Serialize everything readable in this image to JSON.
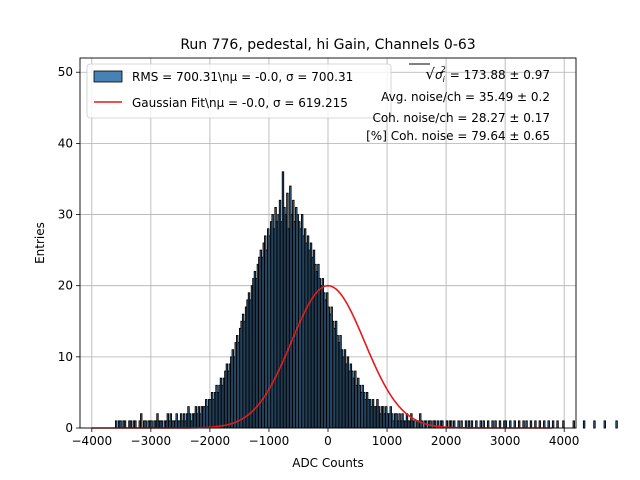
{
  "chart_data": {
    "type": "bar",
    "title": "Run 776, pedestal, hi Gain, Channels 0-63",
    "xlabel": "ADC Counts",
    "ylabel": "Entries",
    "xlim": [
      -4200,
      4200
    ],
    "ylim": [
      0,
      52
    ],
    "x_ticks": [
      -4000,
      -3000,
      -2000,
      -1000,
      0,
      1000,
      2000,
      3000,
      4000
    ],
    "y_ticks": [
      0,
      10,
      20,
      30,
      40,
      50
    ],
    "grid": true,
    "histogram": {
      "name": "RMS",
      "legend_label": "RMS = 700.31\\nμ = -0.0, σ = 700.31",
      "x_start": -3600,
      "bin_width": 25,
      "color": "#4682b4",
      "outline": "#000000",
      "values": [
        1,
        0,
        1,
        1,
        0,
        1,
        1,
        0,
        0,
        1,
        1,
        0,
        1,
        1,
        0,
        0,
        1,
        2,
        0,
        1,
        1,
        0,
        1,
        1,
        1,
        0,
        1,
        1,
        2,
        1,
        1,
        1,
        0,
        1,
        1,
        2,
        1,
        2,
        1,
        1,
        1,
        2,
        1,
        1,
        2,
        1,
        2,
        1,
        2,
        3,
        2,
        1,
        2,
        2,
        3,
        2,
        3,
        2,
        3,
        3,
        3,
        4,
        3,
        4,
        4,
        5,
        4,
        5,
        6,
        5,
        6,
        7,
        6,
        7,
        8,
        9,
        8,
        9,
        10,
        11,
        10,
        12,
        13,
        12,
        14,
        15,
        16,
        15,
        17,
        18,
        19,
        18,
        20,
        21,
        22,
        21,
        23,
        24,
        25,
        24,
        26,
        27,
        25,
        28,
        27,
        29,
        30,
        28,
        31,
        29,
        30,
        32,
        29,
        36,
        31,
        30,
        33,
        28,
        34,
        30,
        32,
        29,
        31,
        30,
        29,
        28,
        30,
        27,
        28,
        26,
        27,
        25,
        26,
        24,
        25,
        23,
        22,
        23,
        21,
        20,
        21,
        19,
        18,
        19,
        17,
        16,
        17,
        15,
        14,
        15,
        13,
        12,
        13,
        11,
        10,
        11,
        9,
        10,
        8,
        9,
        8,
        7,
        8,
        6,
        7,
        6,
        5,
        6,
        5,
        4,
        5,
        4,
        4,
        3,
        4,
        3,
        3,
        4,
        3,
        2,
        3,
        3,
        2,
        3,
        2,
        2,
        3,
        2,
        1,
        2,
        2,
        1,
        2,
        1,
        2,
        1,
        1,
        2,
        1,
        1,
        2,
        1,
        1,
        0,
        1,
        1,
        2,
        1,
        0,
        1,
        1,
        0,
        1,
        1,
        0,
        1,
        1,
        0,
        1,
        0,
        1,
        1,
        0,
        0,
        1,
        0,
        1,
        1,
        0,
        1,
        0,
        0,
        1,
        0,
        1,
        0,
        0,
        1,
        0,
        1,
        0,
        1,
        0,
        0,
        1,
        0,
        0,
        1,
        0,
        1,
        0,
        0,
        1,
        0,
        0,
        1,
        0,
        1,
        0,
        0,
        1,
        0,
        0,
        1,
        1,
        0,
        0,
        1,
        0,
        0,
        1,
        0,
        0,
        1,
        0,
        0,
        1,
        0,
        1,
        0,
        0,
        1,
        0,
        0,
        1,
        0,
        0,
        1,
        0,
        0,
        1,
        0,
        0,
        1,
        0,
        0,
        1,
        0,
        0,
        1,
        0,
        0,
        0,
        1,
        0,
        0,
        0,
        0,
        0,
        0,
        1,
        0,
        0,
        0,
        0,
        0,
        0,
        1,
        0,
        0,
        0,
        0,
        0,
        0,
        1,
        0,
        0,
        0,
        0,
        0,
        0,
        1,
        0,
        0,
        0,
        0,
        0,
        0,
        0,
        1,
        0,
        0,
        0,
        0,
        0,
        0,
        0
      ]
    },
    "fit": {
      "name": "Gaussian Fit",
      "legend_label": "Gaussian Fit\\nμ = -0.0, σ = 619.215",
      "type": "line",
      "color": "#e41a1c",
      "mu": 0.0,
      "sigma": 619.215,
      "amplitude": 20.0,
      "x_range": [
        -4000,
        3800
      ]
    },
    "annotations": [
      {
        "id": "total",
        "prefix": "√",
        "symbol": "σ",
        "sub": "i",
        "sup": "2",
        "text": " = 173.88 ± 0.97"
      },
      {
        "id": "avg",
        "text": "Avg. noise/ch = 35.49 ± 0.2"
      },
      {
        "id": "coh",
        "text": "Coh. noise/ch = 28.27 ± 0.17"
      },
      {
        "id": "pct",
        "text": "[%] Coh. noise = 79.64 ± 0.65"
      }
    ]
  }
}
